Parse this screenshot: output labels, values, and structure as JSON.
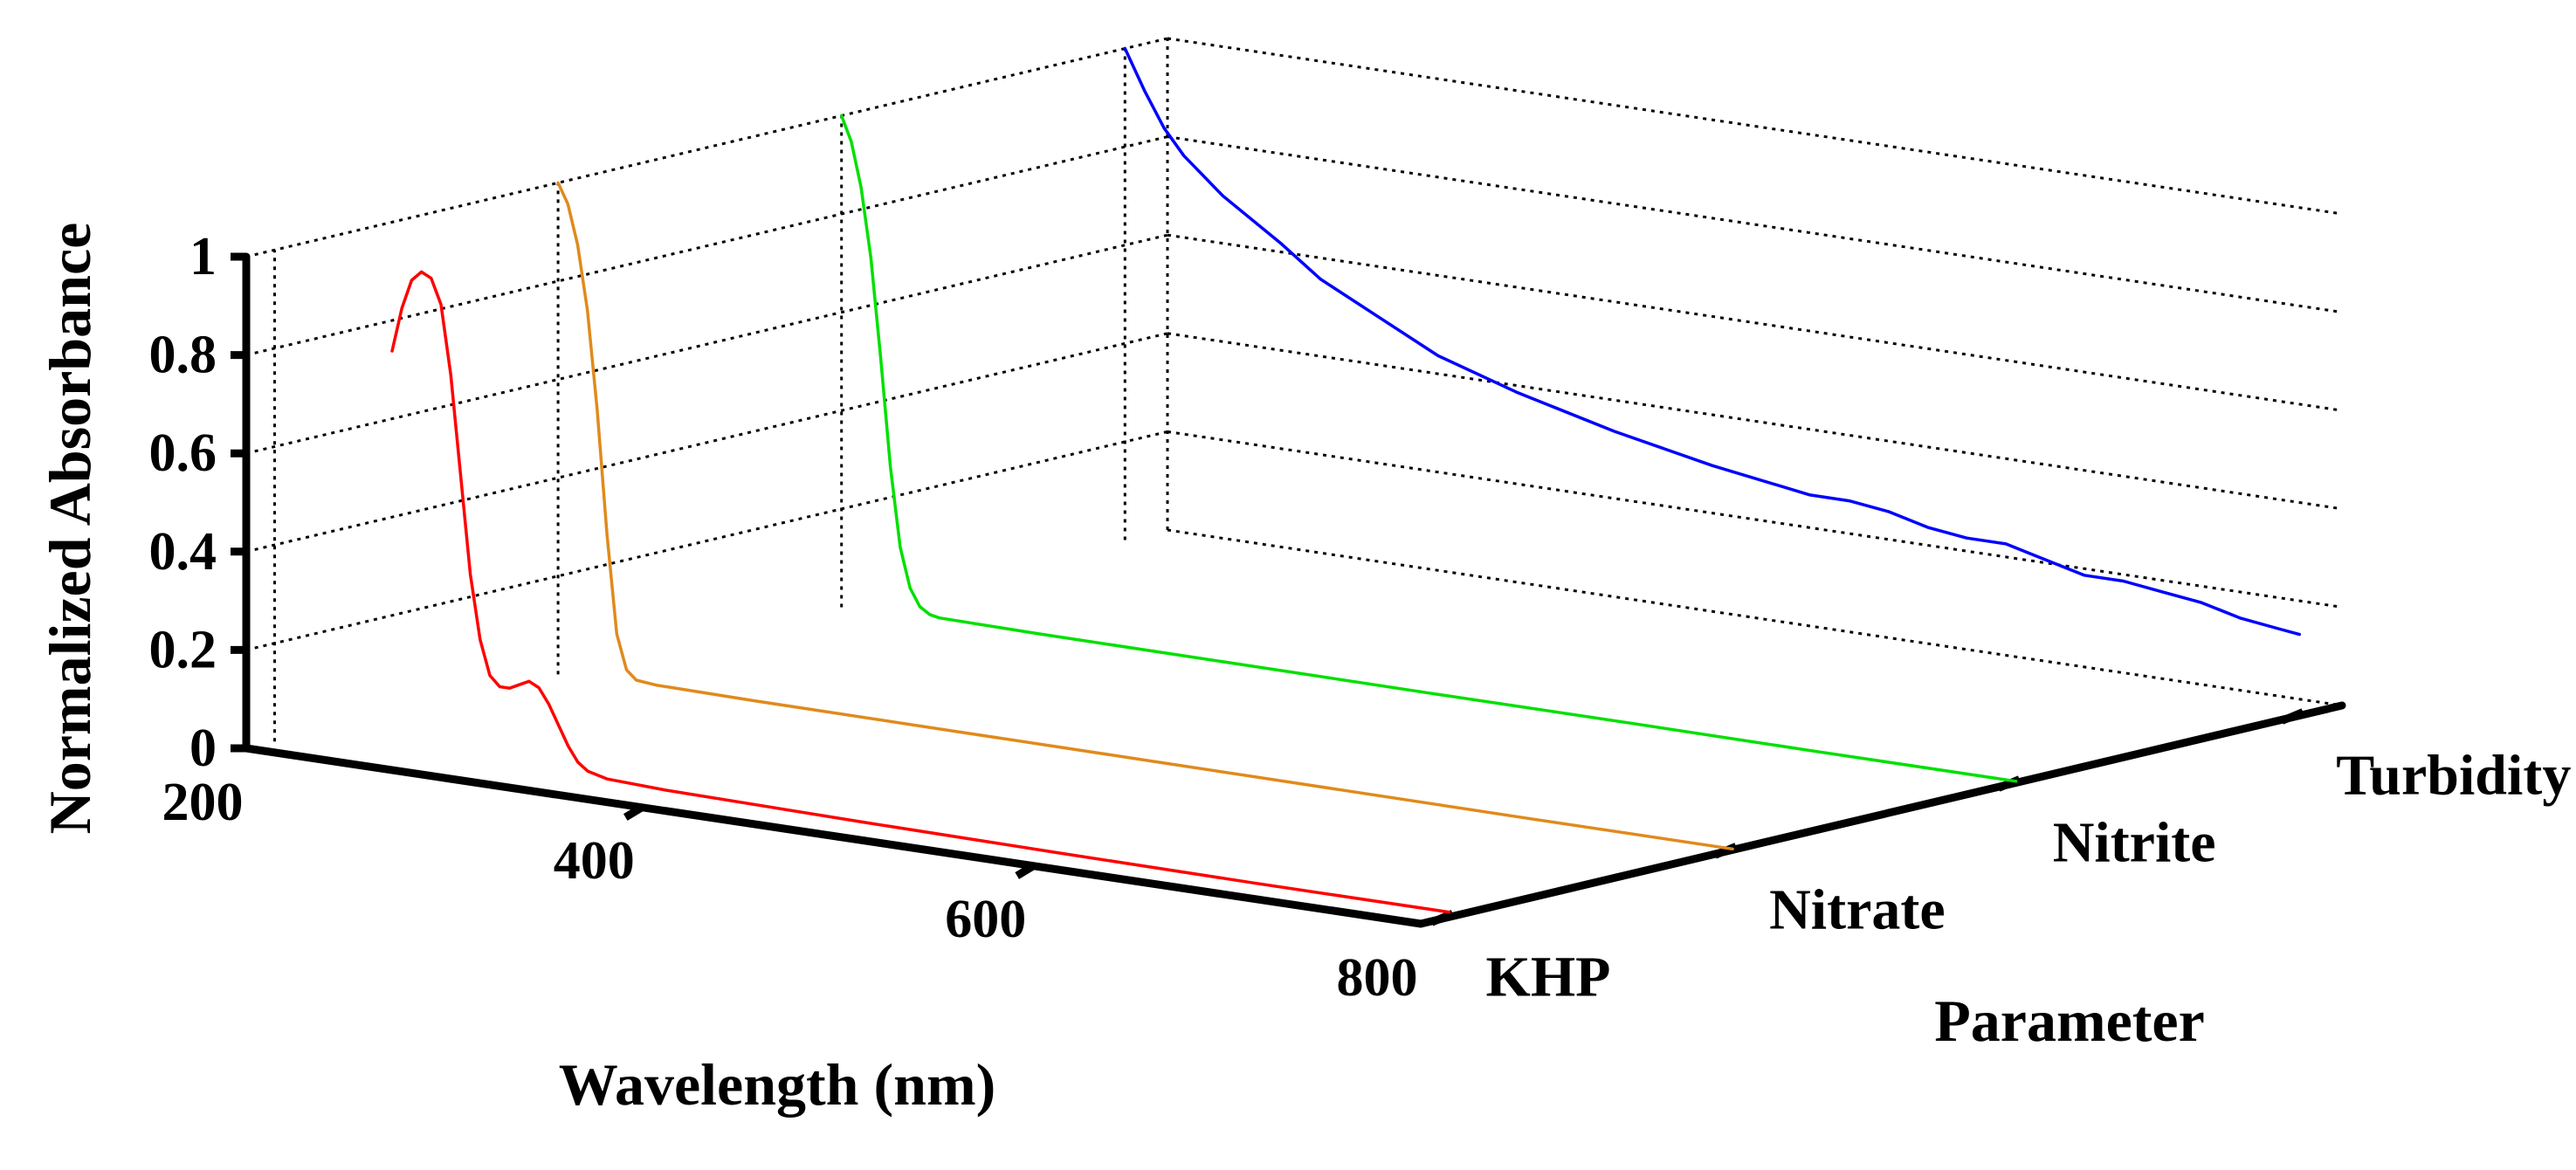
{
  "chart_data": {
    "type": "line",
    "subtype": "3d-waterfall",
    "title": "",
    "xlabel": "Wavelength (nm)",
    "ylabel": "Normalized Absorbance",
    "zlabel": "Parameter",
    "xlim": [
      200,
      800
    ],
    "ylim": [
      0,
      1
    ],
    "x_ticks": [
      200,
      400,
      600,
      800
    ],
    "x_tick_labels": [
      "200",
      "400",
      "600",
      "800"
    ],
    "y_ticks": [
      0,
      0.2,
      0.4,
      0.6,
      0.8,
      1
    ],
    "y_tick_labels": [
      "0",
      "0.2",
      "0.4",
      "0.6",
      "0.8",
      "1"
    ],
    "categories": [
      "KHP",
      "Nitrate",
      "Nitrite",
      "Turbidity"
    ],
    "grid": true,
    "series": [
      {
        "name": "KHP",
        "color": "#ff0000",
        "points": [
          [
            260,
            0.83
          ],
          [
            265,
            0.92
          ],
          [
            270,
            0.98
          ],
          [
            275,
            1.0
          ],
          [
            280,
            0.99
          ],
          [
            285,
            0.94
          ],
          [
            290,
            0.8
          ],
          [
            295,
            0.6
          ],
          [
            300,
            0.4
          ],
          [
            305,
            0.27
          ],
          [
            310,
            0.2
          ],
          [
            315,
            0.18
          ],
          [
            320,
            0.18
          ],
          [
            325,
            0.19
          ],
          [
            330,
            0.2
          ],
          [
            335,
            0.19
          ],
          [
            340,
            0.16
          ],
          [
            345,
            0.12
          ],
          [
            350,
            0.08
          ],
          [
            355,
            0.05
          ],
          [
            360,
            0.035
          ],
          [
            370,
            0.025
          ],
          [
            400,
            0.02
          ],
          [
            500,
            0.015
          ],
          [
            600,
            0.012
          ],
          [
            700,
            0.01
          ],
          [
            800,
            0.01
          ]
        ]
      },
      {
        "name": "Nitrate",
        "color": "#e08a1c",
        "points": [
          [
            200,
            1.0
          ],
          [
            205,
            0.96
          ],
          [
            210,
            0.88
          ],
          [
            215,
            0.75
          ],
          [
            220,
            0.55
          ],
          [
            225,
            0.3
          ],
          [
            230,
            0.1
          ],
          [
            235,
            0.03
          ],
          [
            240,
            0.012
          ],
          [
            250,
            0.008
          ],
          [
            300,
            0.006
          ],
          [
            400,
            0.005
          ],
          [
            500,
            0.004
          ],
          [
            600,
            0.003
          ],
          [
            700,
            0.002
          ],
          [
            800,
            0.002
          ]
        ]
      },
      {
        "name": "Nitrite",
        "color": "#00e000",
        "points": [
          [
            200,
            1.0
          ],
          [
            205,
            0.95
          ],
          [
            210,
            0.86
          ],
          [
            215,
            0.72
          ],
          [
            220,
            0.52
          ],
          [
            225,
            0.3
          ],
          [
            230,
            0.14
          ],
          [
            235,
            0.06
          ],
          [
            240,
            0.025
          ],
          [
            245,
            0.012
          ],
          [
            250,
            0.008
          ],
          [
            300,
            0.006
          ],
          [
            400,
            0.005
          ],
          [
            500,
            0.004
          ],
          [
            600,
            0.004
          ],
          [
            700,
            0.003
          ],
          [
            800,
            0.003
          ]
        ]
      },
      {
        "name": "Turbidity",
        "color": "#0000ff",
        "points": [
          [
            200,
            1.0
          ],
          [
            210,
            0.92
          ],
          [
            220,
            0.85
          ],
          [
            230,
            0.8
          ],
          [
            250,
            0.73
          ],
          [
            280,
            0.65
          ],
          [
            300,
            0.59
          ],
          [
            330,
            0.53
          ],
          [
            360,
            0.47
          ],
          [
            400,
            0.42
          ],
          [
            450,
            0.37
          ],
          [
            500,
            0.33
          ],
          [
            550,
            0.3
          ],
          [
            570,
            0.3
          ],
          [
            590,
            0.29
          ],
          [
            610,
            0.27
          ],
          [
            630,
            0.26
          ],
          [
            650,
            0.26
          ],
          [
            670,
            0.24
          ],
          [
            690,
            0.22
          ],
          [
            710,
            0.22
          ],
          [
            730,
            0.21
          ],
          [
            750,
            0.2
          ],
          [
            770,
            0.18
          ],
          [
            790,
            0.17
          ],
          [
            800,
            0.165
          ]
        ]
      }
    ]
  }
}
